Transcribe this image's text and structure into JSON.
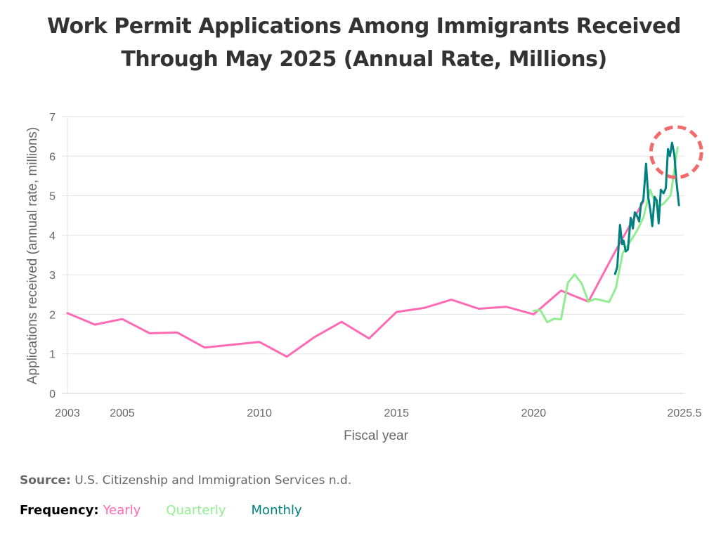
{
  "title_line1": "Work Permit Applications Among Immigrants Received",
  "title_line2": "Through May 2025 (Annual Rate, Millions)",
  "footer": {
    "source_label": "Source:",
    "source_text": "U.S. Citizenship and Immigration Services n.d.",
    "frequency_label": "Frequency:",
    "legend": [
      {
        "name": "Yearly",
        "color": "#ff69b4"
      },
      {
        "name": "Quarterly",
        "color": "#90ee90"
      },
      {
        "name": "Monthly",
        "color": "#008080"
      }
    ]
  },
  "chart_data": {
    "type": "line",
    "title": "Work Permit Applications Among Immigrants Received Through May 2025 (Annual Rate, Millions)",
    "xlabel": "Fiscal year",
    "ylabel": "Applications received (annual rate, millions)",
    "xlim": [
      2003,
      2025.5
    ],
    "ylim": [
      0,
      7
    ],
    "x_ticks": [
      2003,
      2005,
      2010,
      2015,
      2020,
      2025.5
    ],
    "x_tick_labels": [
      "2003",
      "2005",
      "2010",
      "2015",
      "2020",
      "2025.5"
    ],
    "y_ticks": [
      0,
      1,
      2,
      3,
      4,
      5,
      6,
      7
    ],
    "y_tick_labels": [
      "0",
      "1",
      "2",
      "3",
      "4",
      "5",
      "6",
      "7"
    ],
    "grid": "horizontal",
    "legend": "bottom-left",
    "annotation": {
      "type": "dashed-circle",
      "color": "#f26b6b",
      "center": [
        2025.2,
        6.1
      ],
      "radius_years": 0.92
    },
    "series": [
      {
        "name": "Yearly",
        "color": "#ff69b4",
        "x": [
          2003,
          2004,
          2005,
          2006,
          2007,
          2008,
          2009,
          2010,
          2011,
          2012,
          2013,
          2014,
          2015,
          2016,
          2017,
          2018,
          2019,
          2020,
          2021,
          2022,
          2023,
          2024
        ],
        "y": [
          2.03,
          1.74,
          1.88,
          1.52,
          1.54,
          1.16,
          1.23,
          1.3,
          0.93,
          1.42,
          1.81,
          1.39,
          2.06,
          2.16,
          2.37,
          2.14,
          2.19,
          2.0,
          2.6,
          2.32,
          3.62,
          4.85
        ]
      },
      {
        "name": "Quarterly",
        "color": "#90ee90",
        "x": [
          2020.0,
          2020.25,
          2020.5,
          2020.75,
          2021.0,
          2021.25,
          2021.5,
          2021.75,
          2022.0,
          2022.25,
          2022.5,
          2022.75,
          2023.0,
          2023.25,
          2023.5,
          2023.75,
          2024.0,
          2024.25,
          2024.5,
          2024.75,
          2025.0,
          2025.25
        ],
        "y": [
          2.09,
          2.1,
          1.8,
          1.89,
          1.87,
          2.8,
          3.01,
          2.78,
          2.32,
          2.39,
          2.35,
          2.31,
          2.66,
          3.55,
          3.82,
          4.09,
          4.44,
          5.15,
          4.71,
          4.8,
          5.01,
          6.22
        ]
      },
      {
        "name": "Monthly",
        "color": "#008080",
        "x": [
          2022.97,
          2023.05,
          2023.15,
          2023.23,
          2023.28,
          2023.36,
          2023.44,
          2023.54,
          2023.62,
          2023.69,
          2023.77,
          2023.85,
          2023.92,
          2024.0,
          2024.1,
          2024.18,
          2024.26,
          2024.33,
          2024.41,
          2024.49,
          2024.56,
          2024.64,
          2024.74,
          2024.82,
          2024.9,
          2024.97,
          2025.05,
          2025.13,
          2025.2,
          2025.3
        ],
        "y": [
          3.02,
          3.2,
          4.26,
          3.77,
          3.86,
          3.59,
          3.64,
          4.44,
          4.17,
          4.58,
          4.49,
          4.35,
          4.8,
          4.88,
          5.81,
          4.97,
          4.62,
          4.23,
          4.97,
          4.88,
          4.3,
          5.15,
          5.06,
          5.19,
          6.18,
          6.0,
          6.34,
          6.04,
          5.42,
          4.76
        ]
      }
    ]
  }
}
